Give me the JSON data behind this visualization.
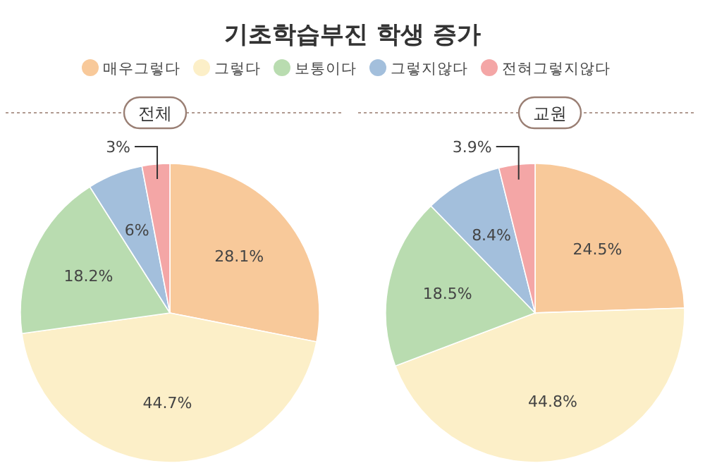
{
  "chart_data": [
    {
      "type": "pie",
      "title": "기초학습부진 학생 증가",
      "subtitle": "전체",
      "categories": [
        "매우그렇다",
        "그렇다",
        "보통이다",
        "그렇지않다",
        "전혀그렇지않다"
      ],
      "values": [
        28.1,
        44.7,
        18.2,
        6,
        3
      ],
      "colors": [
        "#f8c99a",
        "#fcefc8",
        "#b9dcb0",
        "#a3bfdc",
        "#f4a6a6"
      ],
      "value_labels": [
        "28.1%",
        "44.7%",
        "18.2%",
        "6%",
        "3%"
      ],
      "legend": "top"
    },
    {
      "type": "pie",
      "subtitle": "교원",
      "categories": [
        null,
        null,
        null,
        null,
        null
      ],
      "values": [
        24.5,
        44.8,
        18.5,
        8.4,
        3.9
      ],
      "colors": [
        "#f8c99a",
        "#fcefc8",
        "#b9dcb0",
        "#a3bfdc",
        "#f4a6a6"
      ],
      "value_labels": [
        "24.5%",
        "44.8%",
        "18.5%",
        "8.4%",
        "3.9%"
      ]
    }
  ]
}
